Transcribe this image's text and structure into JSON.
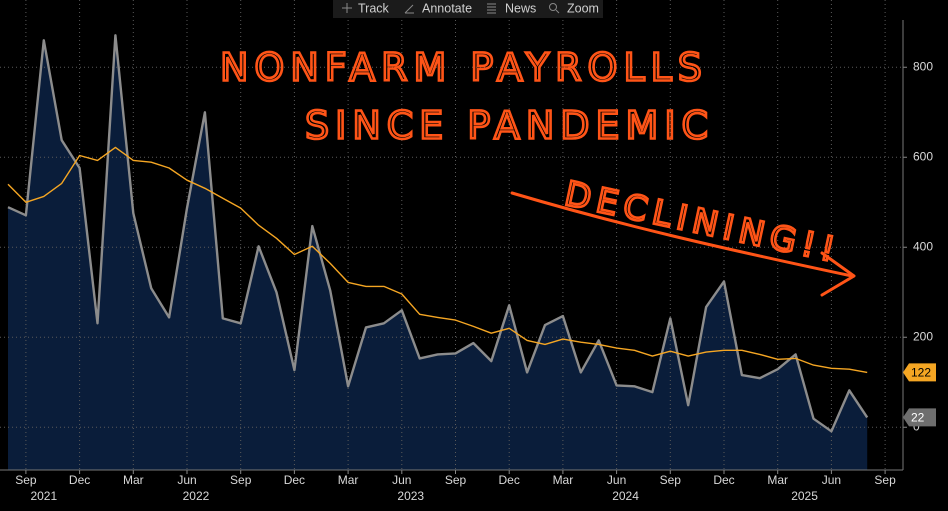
{
  "toolbar": {
    "buttons": [
      "Track",
      "Annotate",
      "News",
      "Zoom"
    ]
  },
  "chart_data": {
    "type": "line",
    "x": [
      "2021-08",
      "2021-09",
      "2021-10",
      "2021-11",
      "2021-12",
      "2022-01",
      "2022-02",
      "2022-03",
      "2022-04",
      "2022-05",
      "2022-06",
      "2022-07",
      "2022-08",
      "2022-09",
      "2022-10",
      "2022-11",
      "2022-12",
      "2023-01",
      "2023-02",
      "2023-03",
      "2023-04",
      "2023-05",
      "2023-06",
      "2023-07",
      "2023-08",
      "2023-09",
      "2023-10",
      "2023-11",
      "2023-12",
      "2024-01",
      "2024-02",
      "2024-03",
      "2024-04",
      "2024-05",
      "2024-06",
      "2024-07",
      "2024-08",
      "2024-09",
      "2024-10",
      "2024-11",
      "2024-12",
      "2025-01",
      "2025-02",
      "2025-03",
      "2025-04",
      "2025-05",
      "2025-06",
      "2025-07",
      "2025-08"
    ],
    "xlim": [
      "2021-08",
      "2025-10"
    ],
    "xticks": [
      {
        "value": "2021-09",
        "label": "Sep"
      },
      {
        "value": "2021-12",
        "label": "Dec"
      },
      {
        "value": "2022-03",
        "label": "Mar"
      },
      {
        "value": "2022-06",
        "label": "Jun"
      },
      {
        "value": "2022-09",
        "label": "Sep"
      },
      {
        "value": "2022-12",
        "label": "Dec"
      },
      {
        "value": "2023-03",
        "label": "Mar"
      },
      {
        "value": "2023-06",
        "label": "Jun"
      },
      {
        "value": "2023-09",
        "label": "Sep"
      },
      {
        "value": "2023-12",
        "label": "Dec"
      },
      {
        "value": "2024-03",
        "label": "Mar"
      },
      {
        "value": "2024-06",
        "label": "Jun"
      },
      {
        "value": "2024-09",
        "label": "Sep"
      },
      {
        "value": "2024-12",
        "label": "Dec"
      },
      {
        "value": "2025-03",
        "label": "Mar"
      },
      {
        "value": "2025-06",
        "label": "Jun"
      },
      {
        "value": "2025-09",
        "label": "Sep"
      }
    ],
    "years": [
      "2021",
      "2022",
      "2023",
      "2024",
      "2025"
    ],
    "ylim": [
      -95,
      905
    ],
    "yticks": [
      0,
      200,
      400,
      600,
      800
    ],
    "grid": true,
    "series": [
      {
        "color": "#8c8c8c",
        "fill": "#0a1d3a",
        "values": [
          489,
          471,
          860,
          638,
          576,
          231,
          871,
          476,
          309,
          244,
          487,
          700,
          242,
          231,
          402,
          300,
          127,
          447,
          304,
          91,
          222,
          231,
          260,
          153,
          162,
          164,
          187,
          147,
          271,
          122,
          227,
          247,
          122,
          193,
          93,
          91,
          78,
          242,
          49,
          267,
          324,
          116,
          109,
          129,
          162,
          19,
          -9,
          82,
          22
        ]
      },
      {
        "color": "#f5a623",
        "values": [
          540,
          500,
          513,
          542,
          604,
          593,
          622,
          593,
          589,
          576,
          549,
          531,
          509,
          487,
          449,
          420,
          384,
          402,
          364,
          322,
          313,
          313,
          296,
          251,
          244,
          238,
          224,
          209,
          220,
          193,
          184,
          196,
          189,
          184,
          176,
          171,
          158,
          169,
          158,
          167,
          171,
          171,
          162,
          151,
          153,
          138,
          131,
          129,
          122
        ]
      }
    ],
    "annotations": [
      "NONFARM PAYROLLS",
      "SINCE PANDEMIC",
      "DECLINING!!"
    ]
  }
}
